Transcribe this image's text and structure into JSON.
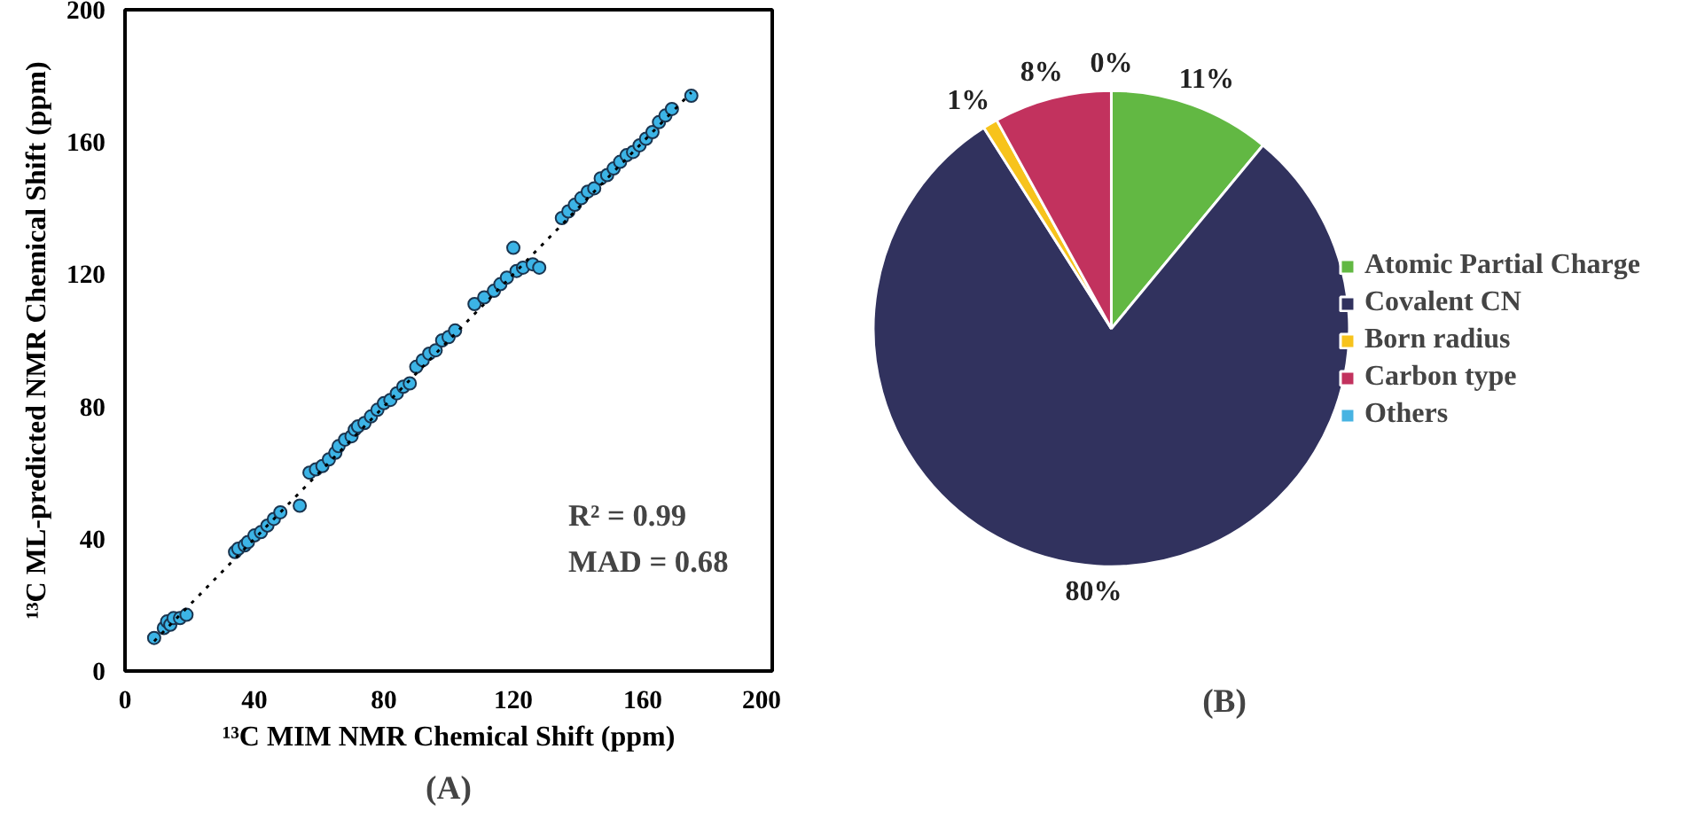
{
  "chart_data": [
    {
      "type": "scatter",
      "title": "(A)",
      "xlabel": "¹³C MIM NMR Chemical Shift (ppm)",
      "ylabel": "¹³C ML-predicted NMR Chemical Shift (ppm)",
      "xlim": [
        0,
        200
      ],
      "ylim": [
        0,
        200
      ],
      "xticks": [
        0,
        40,
        80,
        120,
        160,
        200
      ],
      "yticks": [
        0,
        40,
        80,
        120,
        160,
        200
      ],
      "grid": false,
      "annotations": [
        "R² = 0.99",
        "MAD = 0.68"
      ],
      "series": [
        {
          "type": "scatter",
          "color": "#3cb4e6",
          "marker": "circle",
          "x": [
            9,
            12,
            13,
            14,
            15,
            17,
            19,
            34,
            35,
            37,
            38,
            40,
            42,
            44,
            46,
            48,
            54,
            57,
            59,
            61,
            63,
            65,
            66,
            68,
            70,
            71,
            72,
            74,
            76,
            78,
            80,
            82,
            84,
            86,
            88,
            90,
            92,
            94,
            96,
            98,
            100,
            102,
            108,
            111,
            114,
            116,
            118,
            120,
            121,
            123,
            126,
            128,
            135,
            137,
            139,
            141,
            143,
            145,
            147,
            149,
            151,
            153,
            155,
            157,
            159,
            161,
            163,
            165,
            167,
            169,
            175
          ],
          "values": [
            10,
            13,
            15,
            14,
            16,
            16,
            17,
            36,
            37,
            38,
            39,
            41,
            42,
            44,
            46,
            48,
            50,
            60,
            61,
            62,
            64,
            66,
            68,
            70,
            71,
            73,
            74,
            75,
            77,
            79,
            81,
            82,
            84,
            86,
            87,
            92,
            94,
            96,
            97,
            100,
            101,
            103,
            111,
            113,
            115,
            117,
            119,
            128,
            121,
            122,
            123,
            122,
            137,
            139,
            141,
            143,
            145,
            146,
            149,
            150,
            152,
            154,
            156,
            157,
            159,
            161,
            163,
            166,
            168,
            170,
            174
          ]
        },
        {
          "type": "line",
          "color": "#000000",
          "line_style": "dotted",
          "x": [
            9,
            175
          ],
          "values": [
            9,
            175
          ]
        }
      ]
    },
    {
      "type": "pie",
      "title": "(B)",
      "categories": [
        "Atomic Partial Charge",
        "Covalent CN",
        "Born radius",
        "Carbon type",
        "Others"
      ],
      "values": [
        11,
        80,
        1,
        8,
        0
      ],
      "colors": [
        "#62b843",
        "#31325e",
        "#f7c31c",
        "#c2325e",
        "#47b3e2"
      ],
      "value_labels": [
        "11%",
        "80%",
        "1%",
        "8%",
        "0%"
      ],
      "legend": "right"
    }
  ]
}
